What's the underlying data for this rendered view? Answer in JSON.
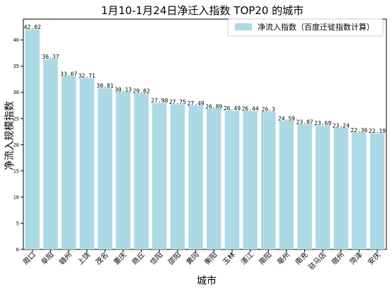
{
  "chart_data": {
    "type": "bar",
    "title": "1月10-1月24日净迁入指数 TOP20 的城市",
    "xlabel": "城市",
    "ylabel": "净流入规模指数",
    "categories": [
      "周口",
      "阜阳",
      "赣州",
      "上饶",
      "茂名",
      "重庆",
      "商丘",
      "信阳",
      "邵阳",
      "黄冈",
      "衡阳",
      "玉林",
      "湛江",
      "南阳",
      "亳州",
      "南充",
      "驻马店",
      "宿州",
      "菏泽",
      "安庆"
    ],
    "series": [
      {
        "name": "净流入指数（百度迁徙指数计算）",
        "values": [
          42.02,
          36.37,
          33.07,
          32.71,
          30.81,
          30.13,
          29.82,
          27.98,
          27.75,
          27.49,
          26.89,
          26.49,
          26.44,
          26.3,
          24.59,
          23.87,
          23.69,
          23.24,
          22.36,
          22.19
        ],
        "value_labels": [
          "42.02",
          "36.37",
          "33.07",
          "32.71",
          "30.81",
          "30.13",
          "29.82",
          "27.98",
          "27.75",
          "27.49",
          "26.89",
          "26.49",
          "26.44",
          "26.3",
          "24.59",
          "23.87",
          "23.69",
          "23.24",
          "22.36",
          "22.19"
        ],
        "color": "#add8e6"
      }
    ],
    "ylim": [
      0,
      44
    ],
    "yticks": [
      0,
      5,
      10,
      15,
      20,
      25,
      30,
      35,
      40
    ],
    "grid": false,
    "legend_position": "top-right",
    "x_tick_rotation": -45
  }
}
